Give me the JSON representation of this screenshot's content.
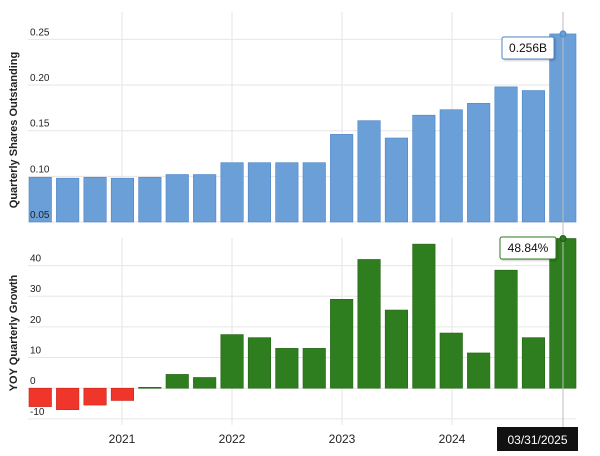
{
  "colors": {
    "shares_bar": "#6a9fd8",
    "shares_bar_edge": "#4f86c6",
    "growth_positive": "#2e7d1e",
    "growth_negative": "#f0352a",
    "grid": "#e6e6e6",
    "hover_line": "#bdbdbd",
    "date_badge_bg": "#111111",
    "date_badge_fg": "#ffffff"
  },
  "chart_data": [
    {
      "type": "bar",
      "ylabel": "Quarterly Shares Outstanding",
      "ylim": [
        0.05,
        0.28
      ],
      "yticks": [
        0.05,
        0.1,
        0.15,
        0.2,
        0.25
      ],
      "ytick_labels": [
        "0.05",
        "0.10",
        "0.15",
        "0.20",
        "0.25"
      ],
      "x_labels": [
        "2021",
        "2022",
        "2023",
        "2024"
      ],
      "grid": true,
      "series": [
        {
          "values": [
            0.099,
            0.098,
            0.099,
            0.098,
            0.099,
            0.102,
            0.102,
            0.115,
            0.115,
            0.115,
            0.115,
            0.146,
            0.161,
            0.142,
            0.167,
            0.173,
            0.18,
            0.198,
            0.194,
            0.256
          ]
        }
      ],
      "tooltip": "0.256B"
    },
    {
      "type": "bar",
      "ylabel": "YOY Quarterly Growth",
      "ylim": [
        -12,
        49
      ],
      "yticks": [
        -10,
        0,
        10,
        20,
        30,
        40
      ],
      "ytick_labels": [
        "-10",
        "0",
        "10",
        "20",
        "30",
        "40"
      ],
      "x_labels": [
        "2021",
        "2022",
        "2023",
        "2024"
      ],
      "grid": true,
      "series": [
        {
          "values": [
            -6,
            -7,
            -5.5,
            -4,
            0.3,
            4.5,
            3.5,
            17.5,
            16.5,
            13,
            13,
            29,
            42,
            25.5,
            47,
            18,
            11.5,
            38.5,
            16.5,
            48.84
          ]
        }
      ],
      "tooltip": "48.84%"
    }
  ],
  "x_axis": {
    "labels": [
      "2021",
      "2022",
      "2023",
      "2024"
    ],
    "selected_date": "03/31/2025"
  }
}
